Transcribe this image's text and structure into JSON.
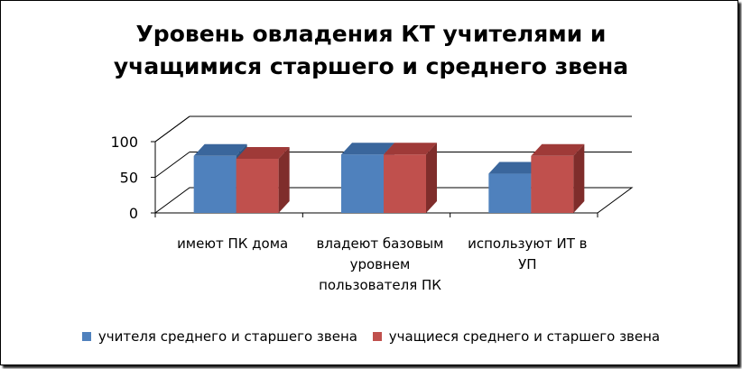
{
  "chart_data": {
    "type": "bar",
    "title_lines": [
      "Уровень овладения КТ учителями и",
      "учащимися старшего и среднего звена"
    ],
    "categories": [
      [
        "имеют ПК дома"
      ],
      [
        "владеют базовым",
        "уровнем",
        "пользователя ПК"
      ],
      [
        "используют ИТ в",
        "УП"
      ]
    ],
    "series": [
      {
        "name": "учителя среднего и старшего звена",
        "values": [
          80,
          82,
          55
        ],
        "color": "#4F81BD",
        "top": "#3A669C",
        "side": "#2F5581"
      },
      {
        "name": "учащиеся среднего и старшего звена",
        "values": [
          76,
          82,
          80
        ],
        "color": "#C0504D",
        "top": "#9F3A38",
        "side": "#7F2D2B"
      }
    ],
    "y_ticks": [
      "0",
      "50",
      "100"
    ],
    "ylim": [
      0,
      100
    ],
    "grid": true,
    "legend_position": "bottom"
  }
}
